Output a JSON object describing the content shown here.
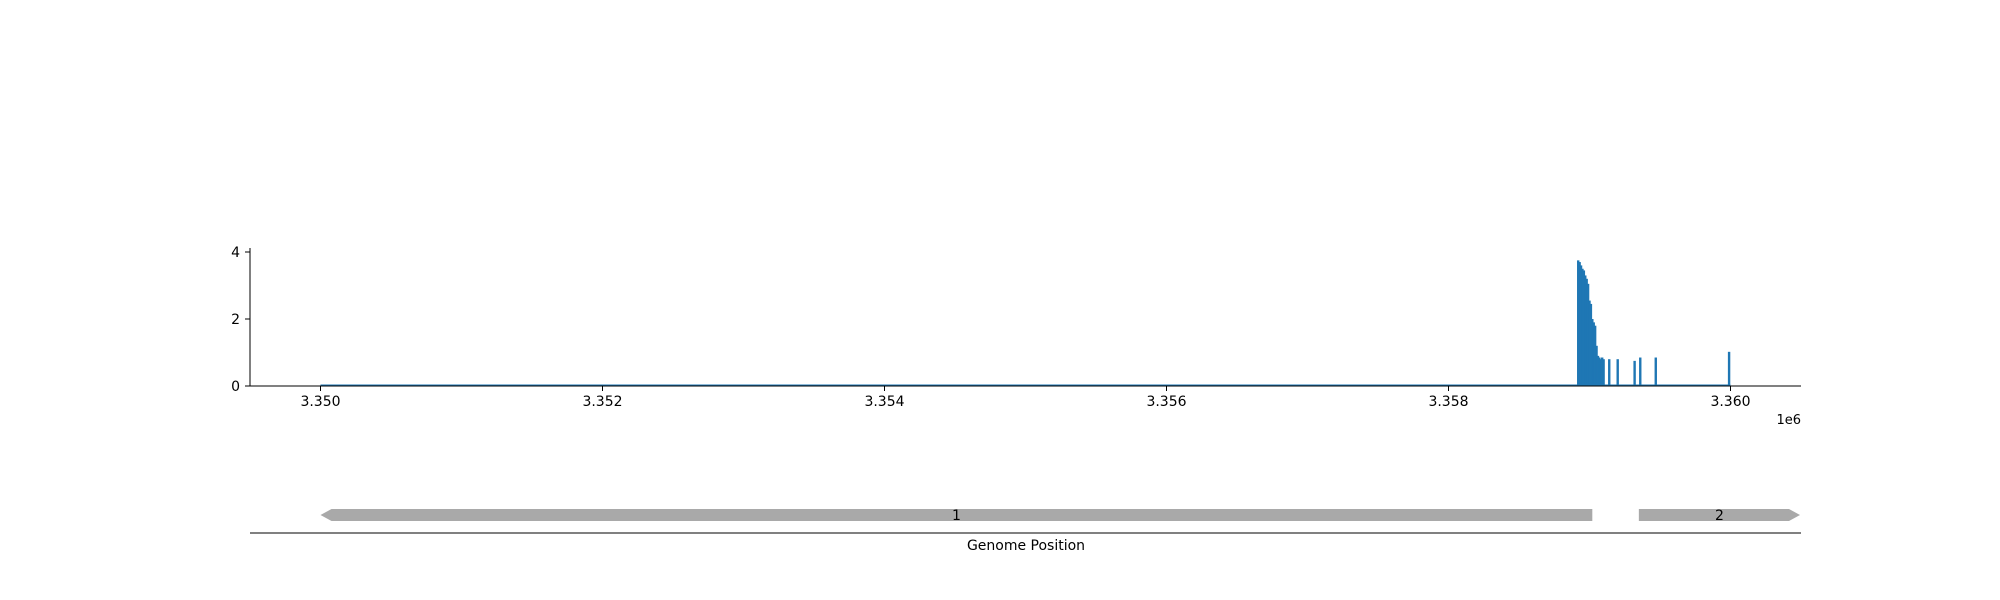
{
  "chart_data": [
    {
      "type": "bar",
      "title": "",
      "xlabel": "",
      "ylabel": "",
      "x_offset_label": "1e6",
      "xlim": [
        3.3495,
        3.3605
      ],
      "ylim": [
        0,
        4.1
      ],
      "x_ticks": [
        3.35,
        3.352,
        3.354,
        3.356,
        3.358,
        3.36
      ],
      "x_tick_labels": [
        "3.350",
        "3.352",
        "3.354",
        "3.356",
        "3.358",
        "3.360"
      ],
      "y_ticks": [
        0,
        2,
        4
      ],
      "y_tick_labels": [
        "0",
        "2",
        "4"
      ],
      "color": "#1f77b4",
      "baseline": {
        "x_start": 3.35,
        "x_end": 3.36,
        "value": 0
      },
      "x": [
        3.35892,
        3.35893,
        3.35894,
        3.35895,
        3.35896,
        3.35897,
        3.35898,
        3.35899,
        3.359,
        3.35901,
        3.35902,
        3.35903,
        3.35904,
        3.35905,
        3.35906,
        3.35907,
        3.35908,
        3.35909,
        3.3591,
        3.35914,
        3.3592,
        3.35932,
        3.35936,
        3.35947,
        3.35999
      ],
      "values": [
        3.75,
        3.7,
        3.6,
        3.5,
        3.45,
        3.3,
        3.2,
        3.05,
        2.55,
        2.45,
        2.0,
        1.9,
        1.8,
        1.2,
        0.9,
        0.85,
        0.8,
        0.85,
        0.8,
        0.8,
        0.8,
        0.75,
        0.85,
        0.85,
        1.02
      ]
    },
    {
      "type": "gene_track",
      "xlabel": "Genome Position",
      "genes": [
        {
          "label": "1",
          "start": 3.35,
          "end": 3.35902,
          "strand": "-"
        },
        {
          "label": "2",
          "start": 3.35935,
          "end": 3.3605,
          "strand": "+"
        }
      ],
      "color": "#a9a9a9"
    }
  ]
}
